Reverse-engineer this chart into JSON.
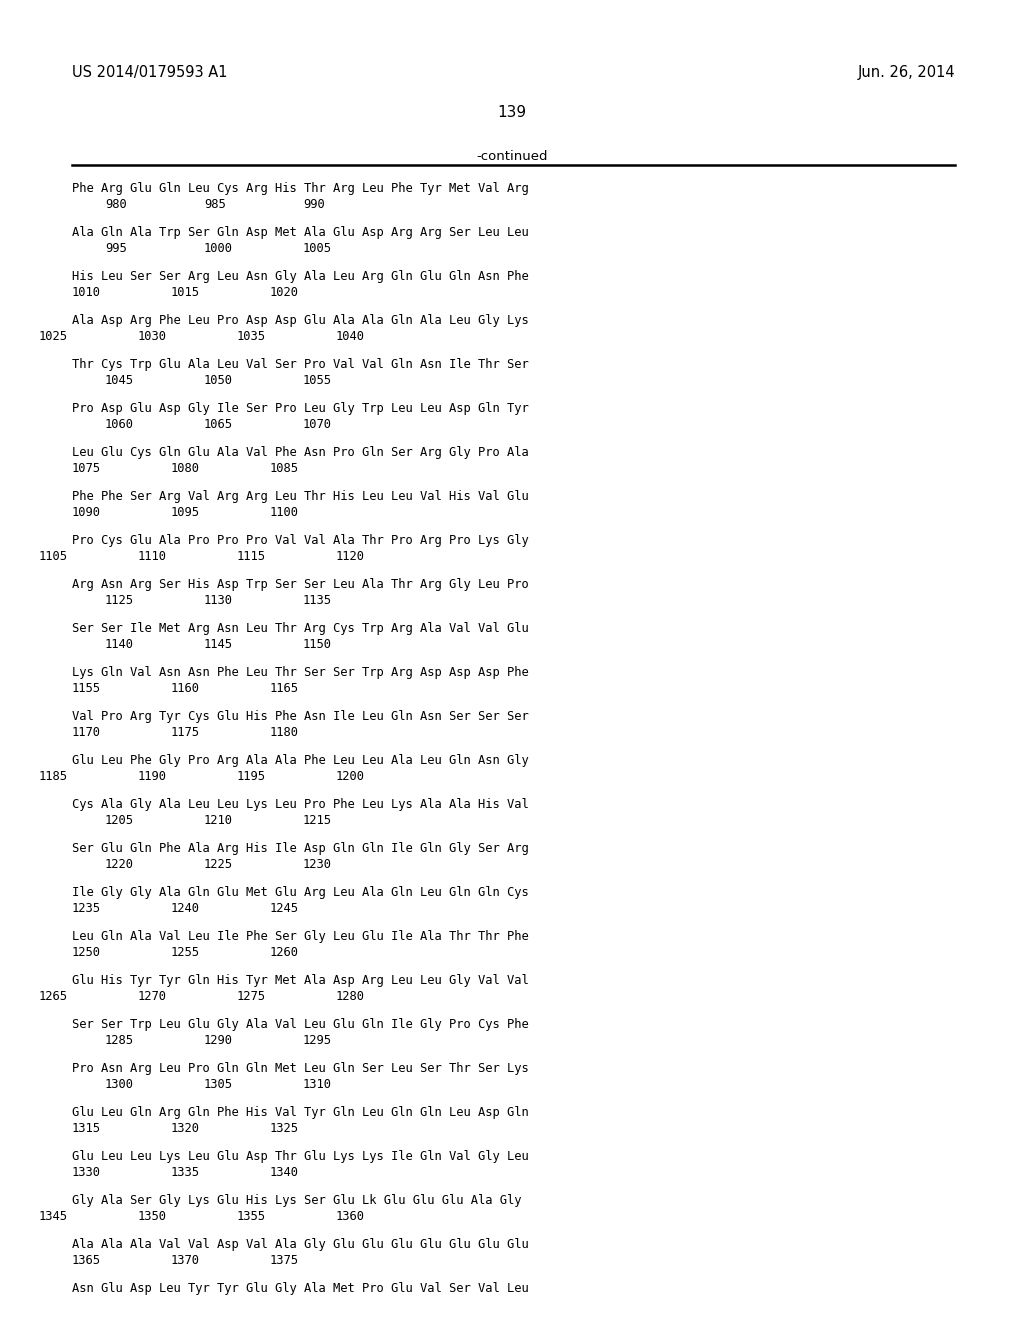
{
  "header_left": "US 2014/0179593 A1",
  "header_right": "Jun. 26, 2014",
  "page_number": "139",
  "continued_label": "-continued",
  "background_color": "#ffffff",
  "text_color": "#000000",
  "sequence_data": [
    {
      "seq": "Phe Arg Glu Gln Leu Cys Arg His Thr Arg Leu Phe Tyr Met Val Arg",
      "nums": [
        [
          "980",
          1
        ],
        [
          "985",
          4
        ],
        [
          "990",
          7
        ]
      ]
    },
    {
      "seq": "Ala Gln Ala Trp Ser Gln Asp Met Ala Glu Asp Arg Arg Ser Leu Leu",
      "nums": [
        [
          "995",
          1
        ],
        [
          "1000",
          4
        ],
        [
          "1005",
          7
        ]
      ]
    },
    {
      "seq": "His Leu Ser Ser Arg Leu Asn Gly Ala Leu Arg Gln Glu Gln Asn Phe",
      "nums": [
        [
          "1010",
          0
        ],
        [
          "1015",
          3
        ],
        [
          "1020",
          6
        ]
      ]
    },
    {
      "seq": "Ala Asp Arg Phe Leu Pro Asp Asp Glu Ala Ala Gln Ala Leu Gly Lys",
      "nums": [
        [
          "1025",
          -1
        ],
        [
          "1030",
          2
        ],
        [
          "1035",
          5
        ],
        [
          "1040",
          8
        ]
      ]
    },
    {
      "seq": "Thr Cys Trp Glu Ala Leu Val Ser Pro Val Val Gln Asn Ile Thr Ser",
      "nums": [
        [
          "1045",
          1
        ],
        [
          "1050",
          4
        ],
        [
          "1055",
          7
        ]
      ]
    },
    {
      "seq": "Pro Asp Glu Asp Gly Ile Ser Pro Leu Gly Trp Leu Leu Asp Gln Tyr",
      "nums": [
        [
          "1060",
          1
        ],
        [
          "1065",
          4
        ],
        [
          "1070",
          7
        ]
      ]
    },
    {
      "seq": "Leu Glu Cys Gln Glu Ala Val Phe Asn Pro Gln Ser Arg Gly Pro Ala",
      "nums": [
        [
          "1075",
          0
        ],
        [
          "1080",
          3
        ],
        [
          "1085",
          6
        ]
      ]
    },
    {
      "seq": "Phe Phe Ser Arg Val Arg Arg Leu Thr His Leu Leu Val His Val Glu",
      "nums": [
        [
          "1090",
          0
        ],
        [
          "1095",
          3
        ],
        [
          "1100",
          6
        ]
      ]
    },
    {
      "seq": "Pro Cys Glu Ala Pro Pro Pro Val Val Ala Thr Pro Arg Pro Lys Gly",
      "nums": [
        [
          "1105",
          -1
        ],
        [
          "1110",
          2
        ],
        [
          "1115",
          5
        ],
        [
          "1120",
          8
        ]
      ]
    },
    {
      "seq": "Arg Asn Arg Ser His Asp Trp Ser Ser Leu Ala Thr Arg Gly Leu Pro",
      "nums": [
        [
          "1125",
          1
        ],
        [
          "1130",
          4
        ],
        [
          "1135",
          7
        ]
      ]
    },
    {
      "seq": "Ser Ser Ile Met Arg Asn Leu Thr Arg Cys Trp Arg Ala Val Val Glu",
      "nums": [
        [
          "1140",
          1
        ],
        [
          "1145",
          4
        ],
        [
          "1150",
          7
        ]
      ]
    },
    {
      "seq": "Lys Gln Val Asn Asn Phe Leu Thr Ser Ser Trp Arg Asp Asp Asp Phe",
      "nums": [
        [
          "1155",
          0
        ],
        [
          "1160",
          3
        ],
        [
          "1165",
          6
        ]
      ]
    },
    {
      "seq": "Val Pro Arg Tyr Cys Glu His Phe Asn Ile Leu Gln Asn Ser Ser Ser",
      "nums": [
        [
          "1170",
          0
        ],
        [
          "1175",
          3
        ],
        [
          "1180",
          6
        ]
      ]
    },
    {
      "seq": "Glu Leu Phe Gly Pro Arg Ala Ala Phe Leu Leu Ala Leu Gln Asn Gly",
      "nums": [
        [
          "1185",
          -1
        ],
        [
          "1190",
          2
        ],
        [
          "1195",
          5
        ],
        [
          "1200",
          8
        ]
      ]
    },
    {
      "seq": "Cys Ala Gly Ala Leu Leu Lys Leu Pro Phe Leu Lys Ala Ala His Val",
      "nums": [
        [
          "1205",
          1
        ],
        [
          "1210",
          4
        ],
        [
          "1215",
          7
        ]
      ]
    },
    {
      "seq": "Ser Glu Gln Phe Ala Arg His Ile Asp Gln Gln Ile Gln Gly Ser Arg",
      "nums": [
        [
          "1220",
          1
        ],
        [
          "1225",
          4
        ],
        [
          "1230",
          7
        ]
      ]
    },
    {
      "seq": "Ile Gly Gly Ala Gln Glu Met Glu Arg Leu Ala Gln Leu Gln Gln Cys",
      "nums": [
        [
          "1235",
          0
        ],
        [
          "1240",
          3
        ],
        [
          "1245",
          6
        ]
      ]
    },
    {
      "seq": "Leu Gln Ala Val Leu Ile Phe Ser Gly Leu Glu Ile Ala Thr Thr Phe",
      "nums": [
        [
          "1250",
          0
        ],
        [
          "1255",
          3
        ],
        [
          "1260",
          6
        ]
      ]
    },
    {
      "seq": "Glu His Tyr Tyr Gln His Tyr Met Ala Asp Arg Leu Leu Gly Val Val",
      "nums": [
        [
          "1265",
          -1
        ],
        [
          "1270",
          2
        ],
        [
          "1275",
          5
        ],
        [
          "1280",
          8
        ]
      ]
    },
    {
      "seq": "Ser Ser Trp Leu Glu Gly Ala Val Leu Glu Gln Ile Gly Pro Cys Phe",
      "nums": [
        [
          "1285",
          1
        ],
        [
          "1290",
          4
        ],
        [
          "1295",
          7
        ]
      ]
    },
    {
      "seq": "Pro Asn Arg Leu Pro Gln Gln Met Leu Gln Ser Leu Ser Thr Ser Lys",
      "nums": [
        [
          "1300",
          1
        ],
        [
          "1305",
          4
        ],
        [
          "1310",
          7
        ]
      ]
    },
    {
      "seq": "Glu Leu Gln Arg Gln Phe His Val Tyr Gln Leu Gln Gln Leu Asp Gln",
      "nums": [
        [
          "1315",
          0
        ],
        [
          "1320",
          3
        ],
        [
          "1325",
          6
        ]
      ]
    },
    {
      "seq": "Glu Leu Leu Lys Leu Glu Asp Thr Glu Lys Lys Ile Gln Val Gly Leu",
      "nums": [
        [
          "1330",
          0
        ],
        [
          "1335",
          3
        ],
        [
          "1340",
          6
        ]
      ]
    },
    {
      "seq": "Gly Ala Ser Gly Lys Glu His Lys Ser Glu Lk Glu Glu Glu Ala Gly",
      "nums": [
        [
          "1345",
          -1
        ],
        [
          "1350",
          2
        ],
        [
          "1355",
          5
        ],
        [
          "1360",
          8
        ]
      ]
    },
    {
      "seq": "Ala Ala Ala Val Val Asp Val Ala Gly Glu Glu Glu Glu Glu Glu Glu",
      "nums": [
        [
          "1365",
          0
        ],
        [
          "1370",
          3
        ],
        [
          "1375",
          6
        ]
      ]
    },
    {
      "seq": "Asn Glu Asp Leu Tyr Tyr Glu Gly Ala Met Pro Glu Val Ser Val Leu",
      "nums": []
    }
  ]
}
